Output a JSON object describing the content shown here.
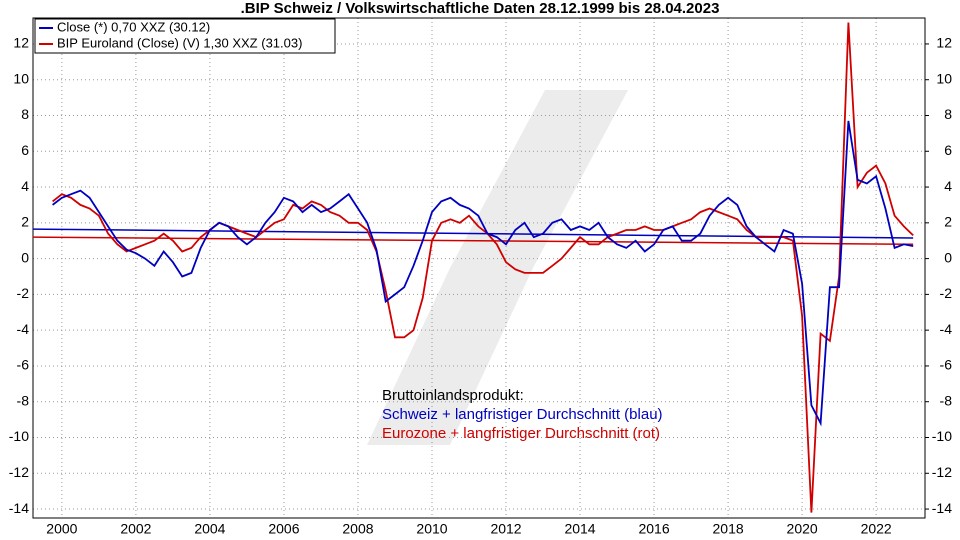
{
  "chart_data": {
    "type": "line",
    "title": ".BIP Schweiz / Volkswirtschaftliche Daten 28.12.1999 bis 28.04.2023",
    "annotations": [
      {
        "text": "Bruttoinlandsprodukt:",
        "color": "#000000"
      },
      {
        "text": "Schweiz + langfristiger Durchschnitt (blau)",
        "color": "#0000c0"
      },
      {
        "text": "Eurozone + langfristiger Durchschnitt (rot)",
        "color": "#d00000"
      }
    ],
    "x": [
      1999.75,
      2000,
      2000.25,
      2000.5,
      2000.75,
      2001,
      2001.25,
      2001.5,
      2001.75,
      2002,
      2002.25,
      2002.5,
      2002.75,
      2003,
      2003.25,
      2003.5,
      2003.75,
      2004,
      2004.25,
      2004.5,
      2004.75,
      2005,
      2005.25,
      2005.5,
      2005.75,
      2006,
      2006.25,
      2006.5,
      2006.75,
      2007,
      2007.25,
      2007.5,
      2007.75,
      2008,
      2008.25,
      2008.5,
      2008.75,
      2009,
      2009.25,
      2009.5,
      2009.75,
      2010,
      2010.25,
      2010.5,
      2010.75,
      2011,
      2011.25,
      2011.5,
      2011.75,
      2012,
      2012.25,
      2012.5,
      2012.75,
      2013,
      2013.25,
      2013.5,
      2013.75,
      2014,
      2014.25,
      2014.5,
      2014.75,
      2015,
      2015.25,
      2015.5,
      2015.75,
      2016,
      2016.25,
      2016.5,
      2016.75,
      2017,
      2017.25,
      2017.5,
      2017.75,
      2018,
      2018.25,
      2018.5,
      2018.75,
      2019,
      2019.25,
      2019.5,
      2019.75,
      2020,
      2020.25,
      2020.5,
      2020.75,
      2021,
      2021.25,
      2021.5,
      2021.75,
      2022,
      2022.25,
      2022.5,
      2022.75,
      2023
    ],
    "series": [
      {
        "name": "Close (*) 0,70 XXZ (30.12)",
        "color": "#0000c0",
        "values": [
          3.0,
          3.4,
          3.6,
          3.8,
          3.4,
          2.6,
          1.8,
          1.0,
          0.5,
          0.3,
          0.0,
          -0.4,
          0.4,
          -0.2,
          -1.0,
          -0.8,
          0.6,
          1.6,
          2.0,
          1.8,
          1.2,
          0.8,
          1.2,
          2.0,
          2.6,
          3.4,
          3.2,
          2.6,
          3.0,
          2.6,
          2.8,
          3.2,
          3.6,
          2.8,
          2.0,
          0.5,
          -2.4,
          -2.0,
          -1.6,
          -0.4,
          1.0,
          2.6,
          3.2,
          3.4,
          3.0,
          2.8,
          2.4,
          1.4,
          1.2,
          0.8,
          1.6,
          2.0,
          1.2,
          1.4,
          2.0,
          2.2,
          1.6,
          1.8,
          1.6,
          2.0,
          1.2,
          0.8,
          0.6,
          1.0,
          0.4,
          0.8,
          1.6,
          1.8,
          1.0,
          1.0,
          1.4,
          2.4,
          3.0,
          3.4,
          3.0,
          1.8,
          1.2,
          0.8,
          0.4,
          1.6,
          1.4,
          -1.4,
          -8.2,
          -9.2,
          -1.6,
          -1.6,
          7.7,
          4.4,
          4.2,
          4.6,
          2.8,
          0.6,
          0.8,
          0.7
        ]
      },
      {
        "name": "BIP Euroland (Close) (V) 1,30 XXZ (31.03)",
        "color": "#d00000",
        "values": [
          3.2,
          3.6,
          3.4,
          3.0,
          2.8,
          2.4,
          1.4,
          0.8,
          0.4,
          0.6,
          0.8,
          1.0,
          1.4,
          1.0,
          0.4,
          0.6,
          1.2,
          1.6,
          2.0,
          1.8,
          1.6,
          1.4,
          1.2,
          1.6,
          2.0,
          2.2,
          3.0,
          2.8,
          3.2,
          3.0,
          2.6,
          2.4,
          2.0,
          2.0,
          1.6,
          0.4,
          -1.8,
          -4.4,
          -4.4,
          -4.0,
          -2.2,
          1.0,
          2.0,
          2.2,
          2.0,
          2.4,
          1.8,
          1.4,
          0.8,
          -0.2,
          -0.6,
          -0.8,
          -0.8,
          -0.8,
          -0.4,
          0.0,
          0.6,
          1.2,
          0.8,
          0.8,
          1.2,
          1.4,
          1.6,
          1.6,
          1.8,
          1.6,
          1.6,
          1.8,
          2.0,
          2.2,
          2.6,
          2.8,
          2.6,
          2.4,
          2.2,
          1.6,
          1.2,
          1.2,
          1.2,
          1.2,
          1.0,
          -3.2,
          -14.2,
          -4.2,
          -4.6,
          -1.0,
          13.2,
          4.0,
          4.8,
          5.2,
          4.2,
          2.4,
          1.8,
          1.3
        ]
      }
    ],
    "trend_lines": [
      {
        "color": "#0000c0",
        "start": 1.65,
        "end": 1.15
      },
      {
        "color": "#d00000",
        "start": 1.2,
        "end": 0.8
      }
    ],
    "xlim": [
      1999.22,
      2023.32
    ],
    "xticks": [
      2000,
      2002,
      2004,
      2006,
      2008,
      2010,
      2012,
      2014,
      2016,
      2018,
      2020,
      2022
    ],
    "ylim": [
      -14.5,
      13.45
    ],
    "yticks": [
      -14,
      -12,
      -10,
      -8,
      -6,
      -4,
      -2,
      0,
      2,
      4,
      6,
      8,
      10,
      12
    ],
    "y2lim": [
      -14.5,
      13.45
    ],
    "y2ticks": [
      -14,
      -12,
      -10,
      -8,
      -6,
      -4,
      -2,
      0,
      2,
      4,
      6,
      8,
      10,
      12
    ],
    "grid": true
  }
}
